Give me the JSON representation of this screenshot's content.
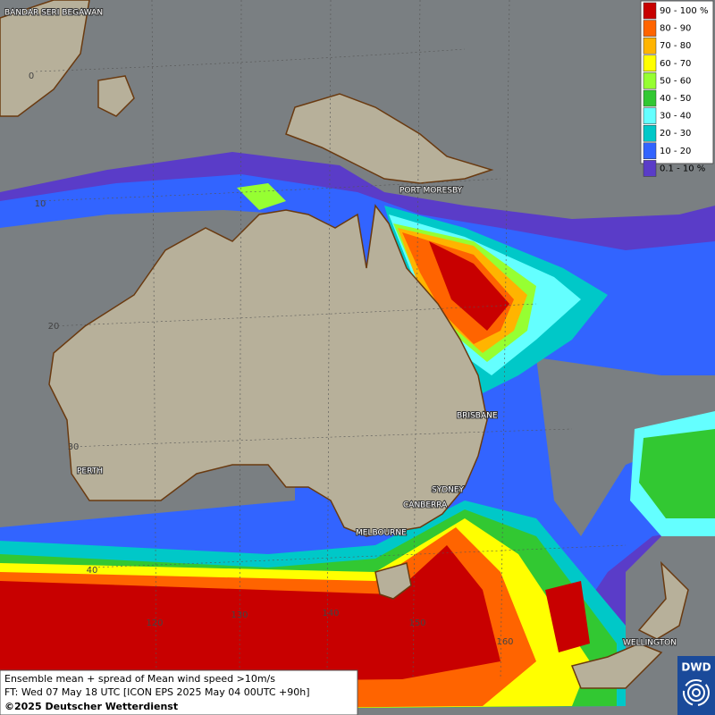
{
  "legend": {
    "items": [
      {
        "label": "90 - 100 %",
        "color": "#c80000"
      },
      {
        "label": "80 - 90",
        "color": "#ff6400"
      },
      {
        "label": "70 - 80",
        "color": "#ffb400"
      },
      {
        "label": "60 - 70",
        "color": "#ffff00"
      },
      {
        "label": "50 - 60",
        "color": "#96ff32"
      },
      {
        "label": "40 - 50",
        "color": "#32c832"
      },
      {
        "label": "30 - 40",
        "color": "#64ffff"
      },
      {
        "label": "20 - 30",
        "color": "#00c8c8"
      },
      {
        "label": "10 - 20",
        "color": "#3264ff"
      },
      {
        "label": "0.1 - 10 %",
        "color": "#5a3cc8"
      }
    ]
  },
  "cities": [
    "BANDAR SERI BEGAWAN",
    "PORT MORESBY",
    "BRISBANE",
    "PERTH",
    "SYDNEY",
    "CANBERRA",
    "MELBOURNE",
    "WELLINGTON"
  ],
  "grid_labels": [
    "0",
    "10",
    "20",
    "30",
    "40",
    "120",
    "130",
    "140",
    "150",
    "160"
  ],
  "info": {
    "line1": "Ensemble mean + spread of Mean wind speed >10m/s",
    "line2": "FT: Wed 07 May 18 UTC [ICON EPS 2025 May 04 00UTC +90h]",
    "line3": "©2025 Deutscher Wetterdienst"
  },
  "logo": "DWD"
}
